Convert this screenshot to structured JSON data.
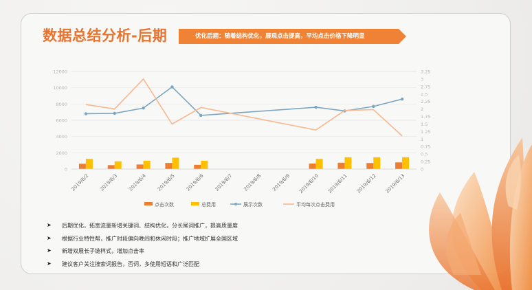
{
  "header": {
    "title": "数据总结分析-后期",
    "banner": "优化后期：随着结构优化，展现点击提高，平均点击价格下降明显",
    "banner_color": "#f08236"
  },
  "chart_data": {
    "type": "bar+line",
    "categories": [
      "2019/6/2",
      "2019/6/3",
      "2019/6/4",
      "2019/6/5",
      "2019/6/6",
      "2019/6/7",
      "2019/6/8",
      "2019/6/9",
      "2019/6/10",
      "2019/6/11",
      "2019/6/12",
      "2019/6/13"
    ],
    "left_axis": {
      "ticks": [
        "0",
        "2000",
        "4000",
        "6000",
        "8000",
        "10000",
        "12000"
      ],
      "min": 0,
      "max": 12000
    },
    "right_axis": {
      "ticks": [
        "0",
        "0.25",
        "0.5",
        "0.75",
        "1",
        "1.25",
        "1.5",
        "1.75",
        "2",
        "2.25",
        "2.5",
        "2.75",
        "3",
        "3.25"
      ],
      "min": 0,
      "max": 3.25
    },
    "series": [
      {
        "name": "点击次数",
        "kind": "bar",
        "axis": "left",
        "color": "#ed7d31",
        "values": [
          650,
          480,
          560,
          750,
          520,
          null,
          null,
          null,
          680,
          780,
          740,
          820
        ]
      },
      {
        "name": "总费用",
        "kind": "bar",
        "axis": "left",
        "color": "#ffc000",
        "values": [
          1250,
          950,
          1030,
          1400,
          1020,
          null,
          null,
          null,
          1250,
          1450,
          1450,
          1450
        ]
      },
      {
        "name": "展示次数",
        "kind": "line",
        "axis": "left",
        "color": "#7aa6c2",
        "values": [
          6800,
          6850,
          7500,
          10100,
          6600,
          null,
          null,
          null,
          7600,
          7150,
          7700,
          8600
        ]
      },
      {
        "name": "平均每次点击费用",
        "kind": "line",
        "axis": "right",
        "color": "#f8b78e",
        "values": [
          2.15,
          2.0,
          3.0,
          1.5,
          2.05,
          null,
          null,
          null,
          1.3,
          1.95,
          1.98,
          1.1
        ]
      }
    ],
    "legend_position": "bottom",
    "grid": "horizontal"
  },
  "bullets": [
    "后期优化，拓宽流量新增关键词、结构优化，分长尾词推广，提高质量度",
    "根据行业特性帮，推广时段偏向晚间和休闲时段；推广地域扩展全国区域",
    "新增双展长子链样式，增加点击率",
    "建议客户关注搜索词报告，否词，多使用短语和广泛匹配"
  ],
  "bullet_marker": "➤"
}
